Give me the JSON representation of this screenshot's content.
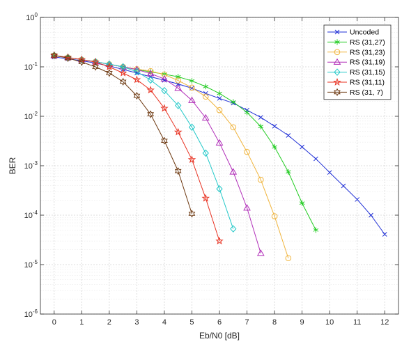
{
  "chart_data": {
    "type": "line",
    "title": "",
    "xlabel": "Eb/N0 [dB]",
    "ylabel": "BER",
    "xlim": [
      -0.5,
      12.5
    ],
    "ylim": [
      1e-06,
      1
    ],
    "yscale": "log",
    "grid": true,
    "legend_position": "top-right",
    "xticks": [
      0,
      1,
      2,
      3,
      4,
      5,
      6,
      7,
      8,
      9,
      10,
      11,
      12
    ],
    "xtick_labels": [
      "0",
      "1",
      "2",
      "3",
      "4",
      "5",
      "6",
      "7",
      "8",
      "9",
      "10",
      "11",
      "12"
    ],
    "ytick_labels": [
      {
        "exp": -6,
        "base": "10",
        "power": "-6"
      },
      {
        "exp": -5,
        "base": "10",
        "power": "-5"
      },
      {
        "exp": -4,
        "base": "10",
        "power": "-4"
      },
      {
        "exp": -3,
        "base": "10",
        "power": "-3"
      },
      {
        "exp": -2,
        "base": "10",
        "power": "-2"
      },
      {
        "exp": -1,
        "base": "10",
        "power": "-1"
      },
      {
        "exp": 0,
        "base": "10",
        "power": "0"
      }
    ],
    "series": [
      {
        "name": "Uncoded",
        "color": "#1f2fd6",
        "marker": "x",
        "x": [
          0,
          0.5,
          1,
          1.5,
          2,
          2.5,
          3,
          3.5,
          4,
          4.5,
          5,
          5.5,
          6,
          6.5,
          7,
          7.5,
          8,
          8.5,
          9,
          9.5,
          10,
          10.5,
          11,
          11.5,
          12
        ],
        "y": [
          0.158,
          0.146,
          0.133,
          0.119,
          0.104,
          0.089,
          0.075,
          0.063,
          0.0535,
          0.045,
          0.037,
          0.029,
          0.023,
          0.0185,
          0.0133,
          0.0095,
          0.0063,
          0.0041,
          0.0024,
          0.00138,
          0.00073,
          0.00039,
          0.000208,
          0.0001,
          4.1e-05
        ]
      },
      {
        "name": "RS (31,27)",
        "color": "#22cc22",
        "marker": "asterisk",
        "x": [
          0,
          0.5,
          1,
          1.5,
          2,
          2.5,
          3,
          3.5,
          4,
          4.5,
          5,
          5.5,
          6,
          6.5,
          7,
          7.5,
          8,
          8.5,
          9,
          9.5
        ],
        "y": [
          0.17,
          0.155,
          0.14,
          0.127,
          0.113,
          0.1,
          0.088,
          0.079,
          0.071,
          0.063,
          0.052,
          0.04,
          0.029,
          0.0195,
          0.012,
          0.0062,
          0.0024,
          0.00075,
          0.000175,
          5e-05
        ]
      },
      {
        "name": "RS (31,23)",
        "color": "#f0b43c",
        "marker": "circle",
        "x": [
          0,
          0.5,
          1,
          1.5,
          2,
          2.5,
          3,
          3.5,
          4,
          4.5,
          5,
          5.5,
          6,
          6.5,
          7,
          7.5,
          8,
          8.5
        ],
        "y": [
          0.17,
          0.155,
          0.14,
          0.127,
          0.113,
          0.1,
          0.09,
          0.082,
          0.07,
          0.053,
          0.038,
          0.025,
          0.0133,
          0.006,
          0.0019,
          0.00052,
          9.5e-05,
          1.35e-05
        ]
      },
      {
        "name": "RS (31,19)",
        "color": "#b02cb8",
        "marker": "triangle",
        "x": [
          0,
          0.5,
          1,
          1.5,
          2,
          2.5,
          3,
          3.5,
          4,
          4.5,
          5,
          5.5,
          6,
          6.5,
          7,
          7.5
        ],
        "y": [
          0.17,
          0.155,
          0.14,
          0.127,
          0.113,
          0.1,
          0.088,
          0.073,
          0.057,
          0.037,
          0.021,
          0.0093,
          0.0029,
          0.00075,
          0.00014,
          1.7e-05
        ]
      },
      {
        "name": "RS (31,15)",
        "color": "#22c8c8",
        "marker": "diamond",
        "x": [
          0,
          0.5,
          1,
          1.5,
          2,
          2.5,
          3,
          3.5,
          4,
          4.5,
          5,
          5.5,
          6,
          6.5
        ],
        "y": [
          0.17,
          0.155,
          0.14,
          0.127,
          0.113,
          0.1,
          0.08,
          0.054,
          0.033,
          0.0165,
          0.006,
          0.0018,
          0.00034,
          5.3e-05
        ]
      },
      {
        "name": "RS (31,11)",
        "color": "#e83222",
        "marker": "pentagram",
        "x": [
          0,
          0.5,
          1,
          1.5,
          2,
          2.5,
          3,
          3.5,
          4,
          4.5,
          5,
          5.5,
          6
        ],
        "y": [
          0.17,
          0.155,
          0.14,
          0.125,
          0.1,
          0.075,
          0.055,
          0.034,
          0.0145,
          0.0048,
          0.00133,
          0.00022,
          3e-05
        ]
      },
      {
        "name": "RS (31, 7)",
        "color": "#6e3a12",
        "marker": "hexagram",
        "x": [
          0,
          0.5,
          1,
          1.5,
          2,
          2.5,
          3,
          3.5,
          4,
          4.5,
          5
        ],
        "y": [
          0.17,
          0.15,
          0.125,
          0.1,
          0.075,
          0.05,
          0.026,
          0.011,
          0.0032,
          0.00078,
          0.000107
        ]
      }
    ]
  }
}
